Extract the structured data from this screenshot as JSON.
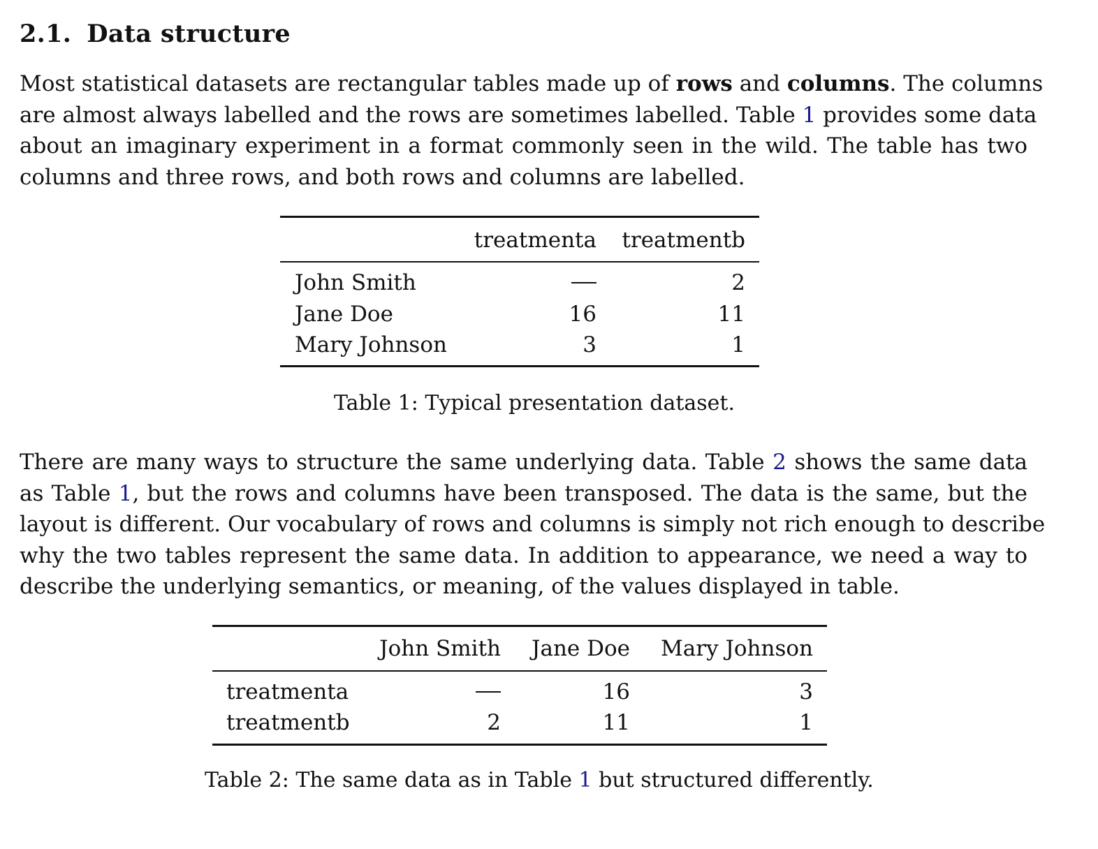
{
  "section": {
    "number": "2.1.",
    "title": "Data structure"
  },
  "para1": {
    "line1": {
      "a": "Most statistical datasets are rectangular tables made up of ",
      "b1": "rows",
      "c": " and ",
      "b2": "columns",
      "d": ". The columns"
    },
    "line2": {
      "a": "are almost always labelled and the rows are sometimes labelled. Table ",
      "ref": "1",
      "b": " provides some data"
    },
    "line3": "about an imaginary experiment in a format commonly seen in the wild. The table has two",
    "line4": "columns and three rows, and both rows and columns are labelled."
  },
  "table1": {
    "columns": [
      "treatmenta",
      "treatmentb"
    ],
    "rows": [
      {
        "label": "John Smith",
        "values": [
          "—",
          "2"
        ]
      },
      {
        "label": "Jane Doe",
        "values": [
          "16",
          "11"
        ]
      },
      {
        "label": "Mary Johnson",
        "values": [
          "3",
          "1"
        ]
      }
    ],
    "caption": "Table 1: Typical presentation dataset."
  },
  "para2": {
    "line1": {
      "a": "There are many ways to structure the same underlying data. Table ",
      "ref": "2",
      "b": " shows the same data"
    },
    "line2": {
      "a": "as Table ",
      "ref": "1",
      "b": ", but the rows and columns have been transposed. The data is the same, but the"
    },
    "line3": "layout is different. Our vocabulary of rows and columns is simply not rich enough to describe",
    "line4": "why the two tables represent the same data. In addition to appearance, we need a way to",
    "line5": "describe the underlying semantics, or meaning, of the values displayed in table."
  },
  "table2": {
    "columns": [
      "John Smith",
      "Jane Doe",
      "Mary Johnson"
    ],
    "rows": [
      {
        "label": "treatmenta",
        "values": [
          "—",
          "16",
          "3"
        ]
      },
      {
        "label": "treatmentb",
        "values": [
          "2",
          "11",
          "1"
        ]
      }
    ],
    "caption": {
      "a": "Table 2: The same data as in Table ",
      "ref": "1",
      "b": " but structured differently."
    }
  }
}
